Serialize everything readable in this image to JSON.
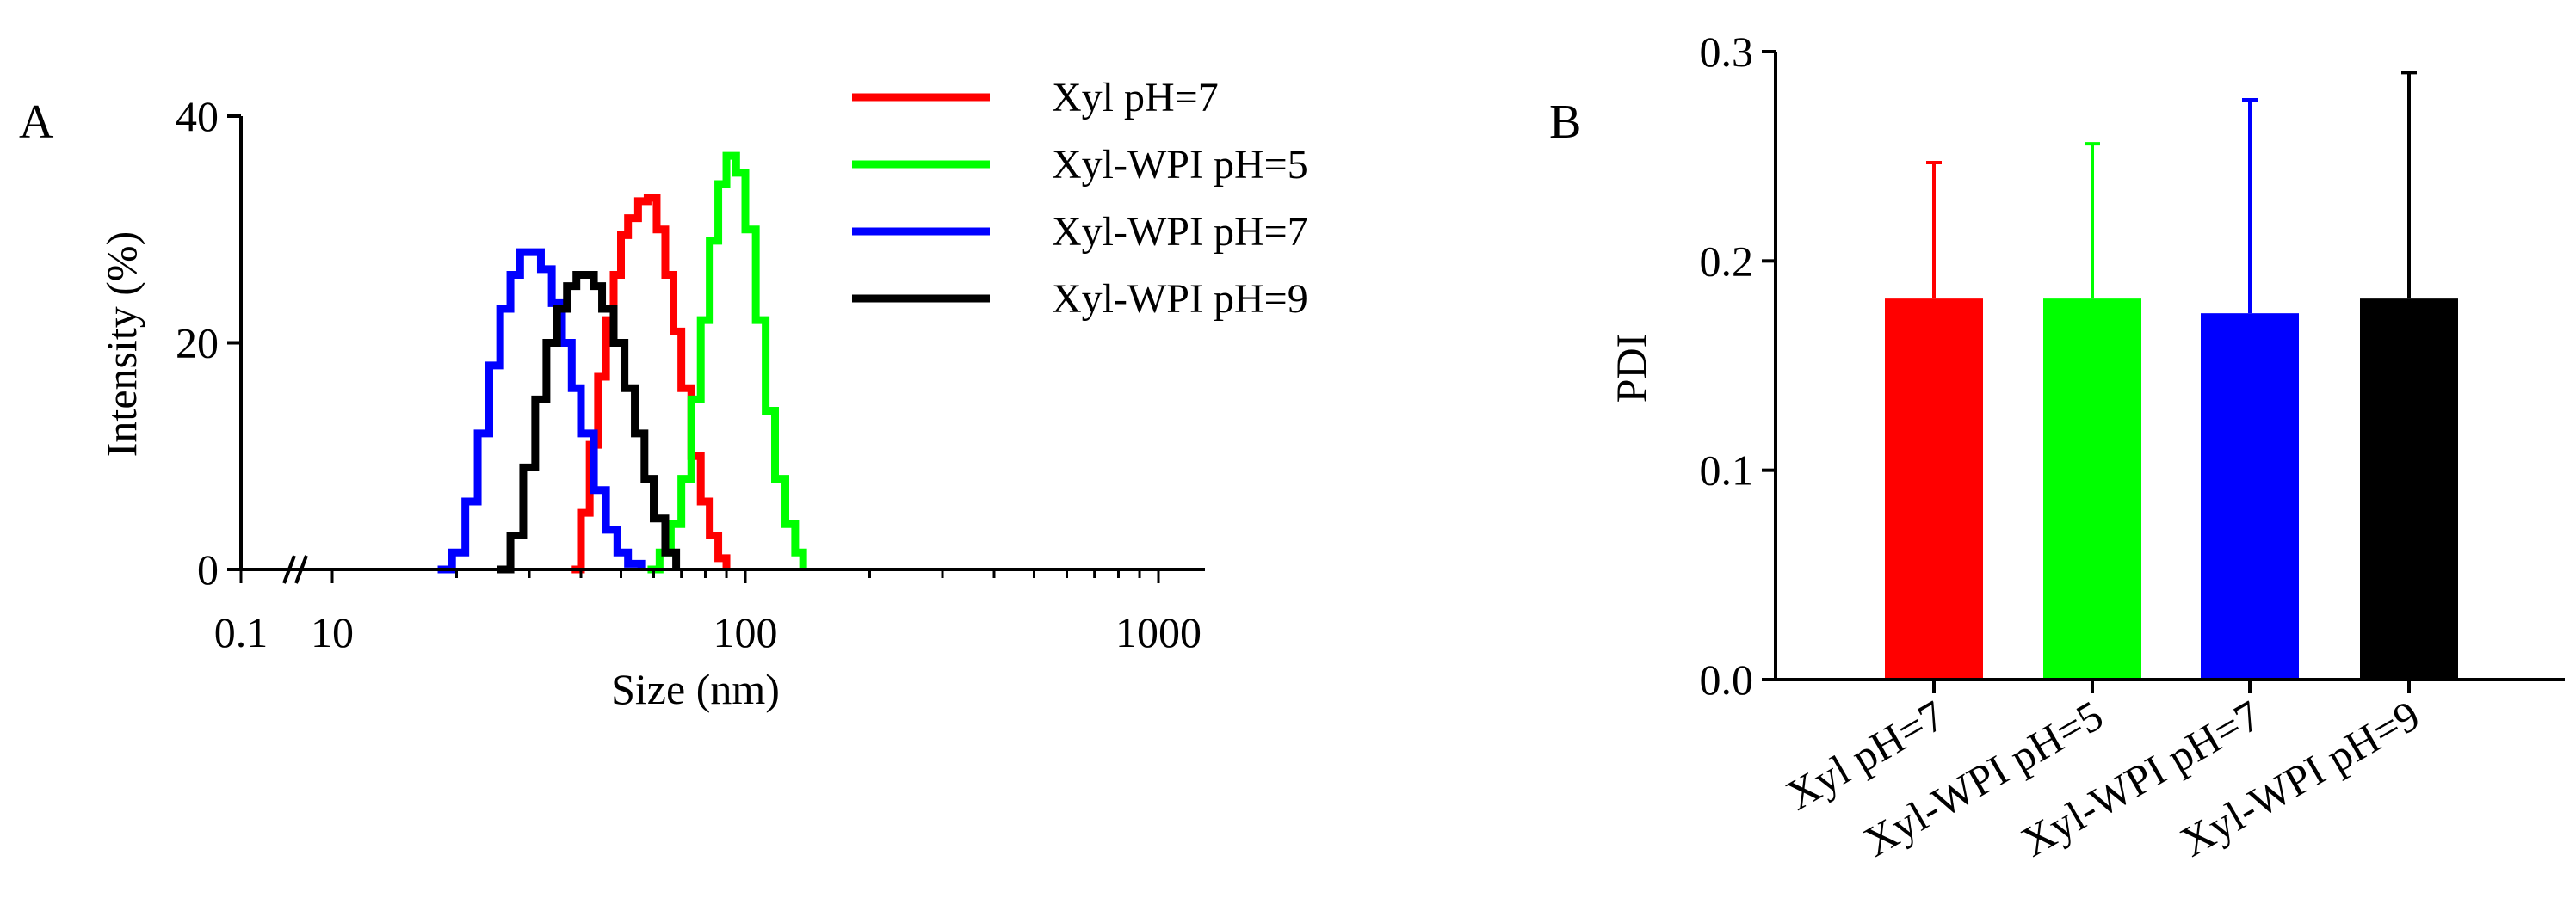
{
  "chart_data": [
    {
      "panel": "A",
      "type": "line",
      "xlabel": "Size (nm)",
      "ylabel": "Intensity (%)",
      "x_scale": "log",
      "x_axis_break": true,
      "ylim": [
        0,
        40
      ],
      "y_ticks": [
        "0",
        "20",
        "40"
      ],
      "x_ticks": [
        "0.1",
        "10",
        "100",
        "1000"
      ],
      "grid": false,
      "legend_position": "top-right",
      "series": [
        {
          "name": "Xyl pH=7",
          "color": "#ff0000",
          "x": [
            38,
            40,
            42,
            44,
            46,
            48,
            50,
            52,
            55,
            58,
            61,
            64,
            67,
            70,
            74,
            78,
            82,
            86,
            90
          ],
          "y": [
            0,
            5,
            11,
            17,
            22,
            26,
            29.5,
            31,
            32.5,
            32.8,
            30,
            26,
            21,
            16,
            10,
            6,
            3,
            1,
            0
          ]
        },
        {
          "name": "Xyl-WPI pH=5",
          "color": "#00ff00",
          "x": [
            58,
            62,
            66,
            70,
            74,
            78,
            82,
            86,
            90,
            95,
            100,
            106,
            112,
            118,
            125,
            132,
            138
          ],
          "y": [
            0,
            1.5,
            4,
            8,
            15,
            22,
            29,
            34,
            36.5,
            35,
            30,
            22,
            14,
            8,
            4,
            1.5,
            0
          ]
        },
        {
          "name": "Xyl-WPI pH=7",
          "color": "#0000ff",
          "x": [
            18,
            19.5,
            21,
            22.5,
            24,
            25.5,
            27,
            28.5,
            30,
            32,
            34,
            36,
            38,
            40,
            43,
            46,
            49,
            52,
            56
          ],
          "y": [
            0,
            1.5,
            6,
            12,
            18,
            23,
            26,
            28,
            28,
            26.5,
            23.5,
            20,
            16,
            12,
            7,
            3.5,
            1.5,
            0.5,
            0
          ]
        },
        {
          "name": "Xyl-WPI pH=9",
          "color": "#000000",
          "x": [
            25,
            27,
            29,
            31,
            33,
            35,
            37,
            39,
            41,
            43,
            45,
            48,
            51,
            54,
            57,
            60,
            64,
            68
          ],
          "y": [
            0,
            3,
            9,
            15,
            20,
            23,
            25,
            26,
            26,
            25,
            23,
            20,
            16,
            12,
            8,
            4.5,
            1.5,
            0
          ]
        }
      ]
    },
    {
      "panel": "B",
      "type": "bar",
      "xlabel": "",
      "ylabel": "PDI",
      "ylim": [
        0,
        0.3
      ],
      "y_ticks": [
        "0.0",
        "0.1",
        "0.2",
        "0.3"
      ],
      "grid": false,
      "categories": [
        "Xyl pH=7",
        "Xyl-WPI pH=5",
        "Xyl-WPI pH=7",
        "Xyl-WPI pH=9"
      ],
      "values": [
        0.182,
        0.182,
        0.175,
        0.182
      ],
      "error_upper": [
        0.247,
        0.256,
        0.277,
        0.29
      ],
      "colors": [
        "#ff0000",
        "#00ff00",
        "#0000ff",
        "#000000"
      ]
    }
  ]
}
